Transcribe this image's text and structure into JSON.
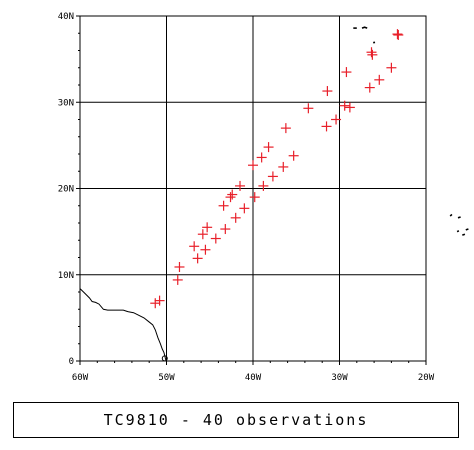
{
  "caption": "TC9810 - 40 observations",
  "axes": {
    "lon_ticks": [
      {
        "value": -60,
        "label": "60W"
      },
      {
        "value": -50,
        "label": "50W"
      },
      {
        "value": -40,
        "label": "40W"
      },
      {
        "value": -30,
        "label": "30W"
      },
      {
        "value": -20,
        "label": "20W"
      }
    ],
    "lat_ticks": [
      {
        "value": 0,
        "label": "0"
      },
      {
        "value": 10,
        "label": "10N"
      },
      {
        "value": 20,
        "label": "20N"
      },
      {
        "value": 30,
        "label": "30N"
      },
      {
        "value": 40,
        "label": "40N"
      }
    ]
  },
  "chart_data": {
    "type": "scatter",
    "title": "TC9810 - 40 observations",
    "xlim": [
      -60,
      -20
    ],
    "ylim": [
      0,
      40
    ],
    "grid": true,
    "marker": "plus",
    "marker_color": "#e8202a",
    "coastline_color": "#000000",
    "points": [
      {
        "lon": -51.3,
        "lat": 6.7
      },
      {
        "lon": -50.8,
        "lat": 7.0
      },
      {
        "lon": -48.7,
        "lat": 9.4
      },
      {
        "lon": -48.5,
        "lat": 10.9
      },
      {
        "lon": -46.8,
        "lat": 13.3
      },
      {
        "lon": -46.4,
        "lat": 11.9
      },
      {
        "lon": -45.8,
        "lat": 14.7
      },
      {
        "lon": -45.5,
        "lat": 12.9
      },
      {
        "lon": -45.3,
        "lat": 15.5
      },
      {
        "lon": -44.3,
        "lat": 14.2
      },
      {
        "lon": -43.4,
        "lat": 18.0
      },
      {
        "lon": -43.2,
        "lat": 15.3
      },
      {
        "lon": -42.6,
        "lat": 19.0
      },
      {
        "lon": -42.4,
        "lat": 19.3
      },
      {
        "lon": -42.0,
        "lat": 16.6
      },
      {
        "lon": -41.5,
        "lat": 20.3
      },
      {
        "lon": -41.0,
        "lat": 17.7
      },
      {
        "lon": -40.0,
        "lat": 22.7
      },
      {
        "lon": -39.8,
        "lat": 19.0
      },
      {
        "lon": -39.0,
        "lat": 23.6
      },
      {
        "lon": -38.8,
        "lat": 20.3
      },
      {
        "lon": -38.2,
        "lat": 24.8
      },
      {
        "lon": -37.7,
        "lat": 21.4
      },
      {
        "lon": -36.5,
        "lat": 22.5
      },
      {
        "lon": -36.2,
        "lat": 27.0
      },
      {
        "lon": -35.3,
        "lat": 23.8
      },
      {
        "lon": -33.6,
        "lat": 29.3
      },
      {
        "lon": -31.5,
        "lat": 27.2
      },
      {
        "lon": -31.4,
        "lat": 31.3
      },
      {
        "lon": -30.4,
        "lat": 28.0
      },
      {
        "lon": -29.4,
        "lat": 29.6
      },
      {
        "lon": -29.2,
        "lat": 33.5
      },
      {
        "lon": -28.8,
        "lat": 29.4
      },
      {
        "lon": -26.5,
        "lat": 31.7
      },
      {
        "lon": -26.3,
        "lat": 35.8
      },
      {
        "lon": -26.2,
        "lat": 35.5
      },
      {
        "lon": -25.4,
        "lat": 32.6
      },
      {
        "lon": -24.0,
        "lat": 34.0
      },
      {
        "lon": -23.3,
        "lat": 37.9
      },
      {
        "lon": -23.2,
        "lat": 37.8
      }
    ],
    "coastline": [
      [
        -60.0,
        8.4
      ],
      [
        -59.6,
        8.0
      ],
      [
        -59.2,
        7.6
      ],
      [
        -58.9,
        7.3
      ],
      [
        -58.6,
        6.9
      ],
      [
        -58.2,
        6.8
      ],
      [
        -57.8,
        6.6
      ],
      [
        -57.3,
        6.0
      ],
      [
        -56.8,
        5.9
      ],
      [
        -56.2,
        5.9
      ],
      [
        -55.6,
        5.9
      ],
      [
        -55.0,
        5.9
      ],
      [
        -54.4,
        5.7
      ],
      [
        -53.8,
        5.6
      ],
      [
        -53.2,
        5.3
      ],
      [
        -52.6,
        5.0
      ],
      [
        -52.1,
        4.6
      ],
      [
        -51.6,
        4.2
      ],
      [
        -51.3,
        3.6
      ],
      [
        -51.0,
        2.7
      ],
      [
        -50.7,
        2.0
      ],
      [
        -50.5,
        1.4
      ],
      [
        -50.3,
        1.0
      ],
      [
        -50.2,
        0.6
      ],
      [
        -50.1,
        0.2
      ],
      [
        -50.0,
        0.0
      ]
    ],
    "islands": [
      [
        [
          -27.4,
          38.6
        ],
        [
          -27.1,
          38.7
        ],
        [
          -26.8,
          38.6
        ]
      ],
      [
        [
          -28.4,
          38.6
        ],
        [
          -28.0,
          38.6
        ]
      ],
      [
        [
          -26.1,
          36.9
        ],
        [
          -25.9,
          36.95
        ]
      ],
      [
        [
          -17.2,
          16.8
        ],
        [
          -17.0,
          17.0
        ]
      ],
      [
        [
          -16.3,
          16.6
        ],
        [
          -16.0,
          16.7
        ]
      ],
      [
        [
          -15.4,
          15.2
        ],
        [
          -15.1,
          15.3
        ]
      ],
      [
        [
          -16.4,
          15.0
        ],
        [
          -16.2,
          15.1
        ]
      ],
      [
        [
          -15.8,
          14.6
        ],
        [
          -15.5,
          14.7
        ]
      ]
    ]
  }
}
